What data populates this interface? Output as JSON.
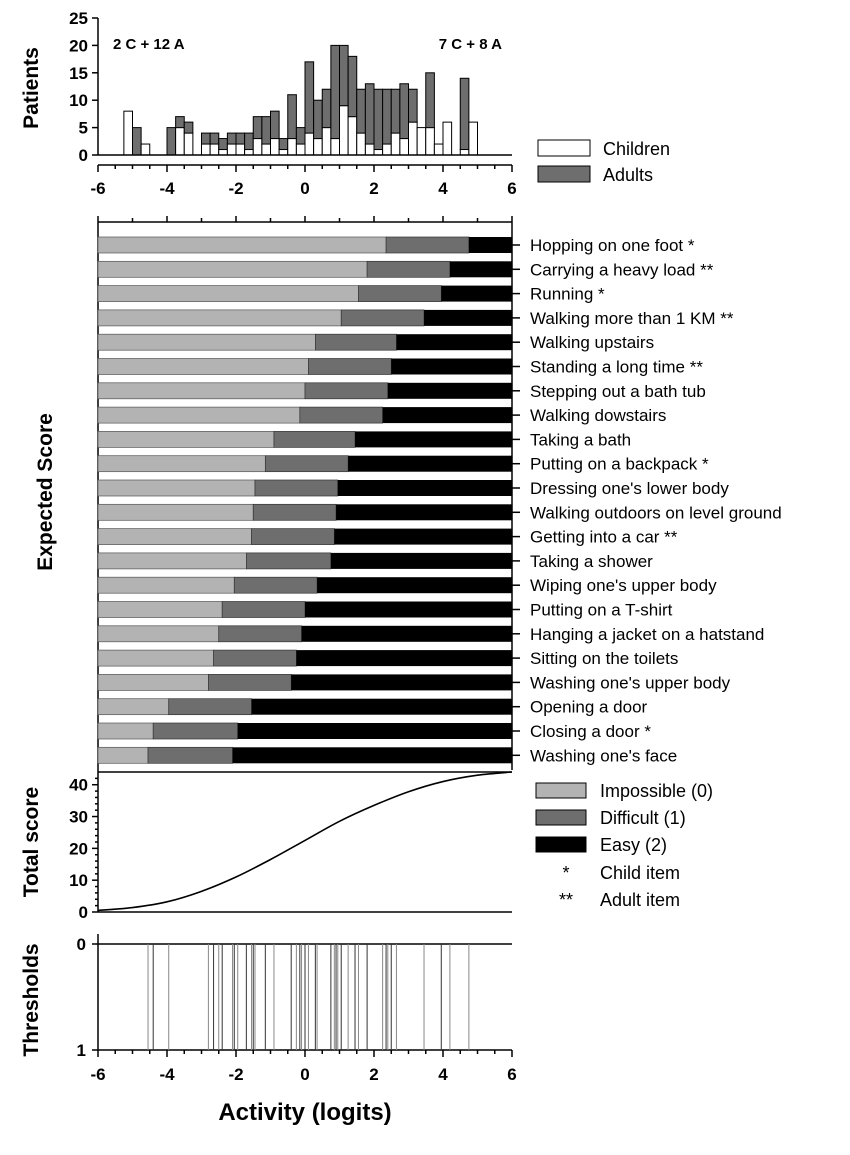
{
  "chart_data": [
    {
      "type": "bar",
      "panel": "histogram",
      "ylabel": "Patients",
      "ylim": [
        0,
        25
      ],
      "yticks": [
        0,
        5,
        10,
        15,
        20,
        25
      ],
      "xlim": [
        -6,
        6
      ],
      "xticks": [
        -6,
        -4,
        -2,
        0,
        2,
        4,
        6
      ],
      "bin_width": 0.25,
      "annotations": [
        "2 C + 12 A",
        "7 C + 8 A"
      ],
      "legend": [
        {
          "name": "Children",
          "color": "#ffffff"
        },
        {
          "name": "Adults",
          "color": "#6e6e6e"
        }
      ],
      "bins": [
        {
          "x": -5.125,
          "children": 8,
          "adults": 0
        },
        {
          "x": -4.875,
          "children": 0,
          "adults": 5
        },
        {
          "x": -4.625,
          "children": 2,
          "adults": 0
        },
        {
          "x": -3.875,
          "children": 0,
          "adults": 5
        },
        {
          "x": -3.625,
          "children": 5,
          "adults": 2
        },
        {
          "x": -3.375,
          "children": 4,
          "adults": 2
        },
        {
          "x": -2.875,
          "children": 2,
          "adults": 2
        },
        {
          "x": -2.625,
          "children": 2,
          "adults": 2
        },
        {
          "x": -2.375,
          "children": 1,
          "adults": 2
        },
        {
          "x": -2.125,
          "children": 2,
          "adults": 2
        },
        {
          "x": -1.875,
          "children": 2,
          "adults": 2
        },
        {
          "x": -1.625,
          "children": 1,
          "adults": 3
        },
        {
          "x": -1.375,
          "children": 3,
          "adults": 4
        },
        {
          "x": -1.125,
          "children": 2,
          "adults": 5
        },
        {
          "x": -0.875,
          "children": 3,
          "adults": 5
        },
        {
          "x": -0.625,
          "children": 1,
          "adults": 2
        },
        {
          "x": -0.375,
          "children": 3,
          "adults": 8
        },
        {
          "x": -0.125,
          "children": 2,
          "adults": 3
        },
        {
          "x": 0.125,
          "children": 4,
          "adults": 13
        },
        {
          "x": 0.375,
          "children": 3,
          "adults": 7
        },
        {
          "x": 0.625,
          "children": 5,
          "adults": 7
        },
        {
          "x": 0.875,
          "children": 3,
          "adults": 17
        },
        {
          "x": 1.125,
          "children": 9,
          "adults": 11
        },
        {
          "x": 1.375,
          "children": 7,
          "adults": 11
        },
        {
          "x": 1.625,
          "children": 4,
          "adults": 8
        },
        {
          "x": 1.875,
          "children": 2,
          "adults": 11
        },
        {
          "x": 2.125,
          "children": 1,
          "adults": 11
        },
        {
          "x": 2.375,
          "children": 2,
          "adults": 10
        },
        {
          "x": 2.625,
          "children": 4,
          "adults": 8
        },
        {
          "x": 2.875,
          "children": 3,
          "adults": 10
        },
        {
          "x": 3.125,
          "children": 6,
          "adults": 6
        },
        {
          "x": 3.375,
          "children": 5,
          "adults": 0
        },
        {
          "x": 3.625,
          "children": 5,
          "adults": 10
        },
        {
          "x": 3.875,
          "children": 2,
          "adults": 0
        },
        {
          "x": 4.125,
          "children": 6,
          "adults": 0
        },
        {
          "x": 4.375,
          "children": 0,
          "adults": 0
        },
        {
          "x": 4.625,
          "children": 1,
          "adults": 13
        },
        {
          "x": 4.875,
          "children": 6,
          "adults": 0
        }
      ]
    },
    {
      "type": "bar",
      "panel": "expected-score",
      "ylabel": "Expected Score",
      "xlim": [
        -6,
        6
      ],
      "xticks": [
        -6,
        -4,
        -2,
        0,
        2,
        4,
        6
      ],
      "legend": [
        {
          "name": "Impossible (0)",
          "color": "#b3b3b3"
        },
        {
          "name": "Difficult (1)",
          "color": "#6e6e6e"
        },
        {
          "name": "Easy (2)",
          "color": "#000000"
        }
      ],
      "marker_legend": [
        {
          "symbol": "*",
          "label": "Child item"
        },
        {
          "symbol": "**",
          "label": "Adult item"
        }
      ],
      "items": [
        {
          "label": "Hopping on one foot *",
          "t1": 2.35,
          "t2": 4.75
        },
        {
          "label": "Carrying a heavy load **",
          "t1": 1.8,
          "t2": 4.2
        },
        {
          "label": "Running *",
          "t1": 1.55,
          "t2": 3.95
        },
        {
          "label": "Walking more than 1 KM **",
          "t1": 1.05,
          "t2": 3.45
        },
        {
          "label": "Walking upstairs",
          "t1": 0.3,
          "t2": 2.65
        },
        {
          "label": "Standing a long time **",
          "t1": 0.1,
          "t2": 2.5
        },
        {
          "label": "Stepping out a bath tub",
          "t1": 0.0,
          "t2": 2.4
        },
        {
          "label": "Walking dowstairs",
          "t1": -0.15,
          "t2": 2.25
        },
        {
          "label": "Taking a bath",
          "t1": -0.9,
          "t2": 1.45
        },
        {
          "label": "Putting on a backpack *",
          "t1": -1.15,
          "t2": 1.25
        },
        {
          "label": "Dressing one's lower body",
          "t1": -1.45,
          "t2": 0.95
        },
        {
          "label": "Walking outdoors on level ground",
          "t1": -1.5,
          "t2": 0.9
        },
        {
          "label": "Getting into a car **",
          "t1": -1.55,
          "t2": 0.85
        },
        {
          "label": "Taking a shower",
          "t1": -1.7,
          "t2": 0.75
        },
        {
          "label": "Wiping one's upper body",
          "t1": -2.05,
          "t2": 0.35
        },
        {
          "label": "Putting on a T-shirt",
          "t1": -2.4,
          "t2": 0.0
        },
        {
          "label": "Hanging a jacket on a hatstand",
          "t1": -2.5,
          "t2": -0.1
        },
        {
          "label": "Sitting on the toilets",
          "t1": -2.65,
          "t2": -0.25
        },
        {
          "label": "Washing one's upper body",
          "t1": -2.8,
          "t2": -0.4
        },
        {
          "label": "Opening a door",
          "t1": -3.95,
          "t2": -1.55
        },
        {
          "label": "Closing a door *",
          "t1": -4.4,
          "t2": -1.95
        },
        {
          "label": "Washing one's face",
          "t1": -4.55,
          "t2": -2.1
        }
      ]
    },
    {
      "type": "line",
      "panel": "total-score",
      "ylabel": "Total score",
      "ylim": [
        0,
        44
      ],
      "yticks": [
        0,
        10,
        20,
        30,
        40
      ],
      "xlim": [
        -6,
        6
      ],
      "series": [
        {
          "values": [
            [
              -6,
              0.5
            ],
            [
              -5,
              1.4
            ],
            [
              -4,
              3.2
            ],
            [
              -3,
              6.5
            ],
            [
              -2,
              11.0
            ],
            [
              -1,
              16.5
            ],
            [
              0,
              22.5
            ],
            [
              1,
              28.5
            ],
            [
              2,
              33.5
            ],
            [
              3,
              37.8
            ],
            [
              4,
              41.0
            ],
            [
              5,
              43.0
            ],
            [
              6,
              44.0
            ]
          ]
        }
      ]
    },
    {
      "type": "scatter",
      "panel": "thresholds",
      "ylabel": "Thresholds",
      "yticks": [
        "0",
        "1"
      ],
      "xlim": [
        -6,
        6
      ],
      "xticks": [
        -6,
        -4,
        -2,
        0,
        2,
        4,
        6
      ],
      "xlabel": "Activity (logits)",
      "tick_label_values": [
        "-6",
        "-4",
        "-2",
        "0",
        "2",
        "4",
        "6"
      ],
      "values": [
        {
          "x": -4.55,
          "color": "#888888"
        },
        {
          "x": -4.4,
          "color": "#333333"
        },
        {
          "x": -3.95,
          "color": "#888888"
        },
        {
          "x": -2.8,
          "color": "#888888"
        },
        {
          "x": -2.65,
          "color": "#333333"
        },
        {
          "x": -2.5,
          "color": "#888888"
        },
        {
          "x": -2.4,
          "color": "#333333"
        },
        {
          "x": -2.1,
          "color": "#888888"
        },
        {
          "x": -2.05,
          "color": "#333333"
        },
        {
          "x": -1.95,
          "color": "#888888"
        },
        {
          "x": -1.7,
          "color": "#333333"
        },
        {
          "x": -1.55,
          "color": "#888888"
        },
        {
          "x": -1.5,
          "color": "#333333"
        },
        {
          "x": -1.45,
          "color": "#888888"
        },
        {
          "x": -1.15,
          "color": "#333333"
        },
        {
          "x": -0.9,
          "color": "#888888"
        },
        {
          "x": -0.4,
          "color": "#333333"
        },
        {
          "x": -0.25,
          "color": "#888888"
        },
        {
          "x": -0.15,
          "color": "#333333"
        },
        {
          "x": -0.1,
          "color": "#888888"
        },
        {
          "x": 0.0,
          "color": "#333333"
        },
        {
          "x": 0.1,
          "color": "#888888"
        },
        {
          "x": 0.3,
          "color": "#333333"
        },
        {
          "x": 0.35,
          "color": "#888888"
        },
        {
          "x": 0.75,
          "color": "#333333"
        },
        {
          "x": 0.85,
          "color": "#888888"
        },
        {
          "x": 0.9,
          "color": "#333333"
        },
        {
          "x": 0.95,
          "color": "#888888"
        },
        {
          "x": 1.05,
          "color": "#333333"
        },
        {
          "x": 1.25,
          "color": "#888888"
        },
        {
          "x": 1.45,
          "color": "#333333"
        },
        {
          "x": 1.55,
          "color": "#888888"
        },
        {
          "x": 1.8,
          "color": "#333333"
        },
        {
          "x": 2.25,
          "color": "#888888"
        },
        {
          "x": 2.35,
          "color": "#333333"
        },
        {
          "x": 2.4,
          "color": "#888888"
        },
        {
          "x": 2.5,
          "color": "#333333"
        },
        {
          "x": 2.65,
          "color": "#888888"
        },
        {
          "x": 3.45,
          "color": "#888888"
        },
        {
          "x": 3.95,
          "color": "#333333"
        },
        {
          "x": 4.2,
          "color": "#888888"
        },
        {
          "x": 4.75,
          "color": "#888888"
        }
      ]
    }
  ]
}
